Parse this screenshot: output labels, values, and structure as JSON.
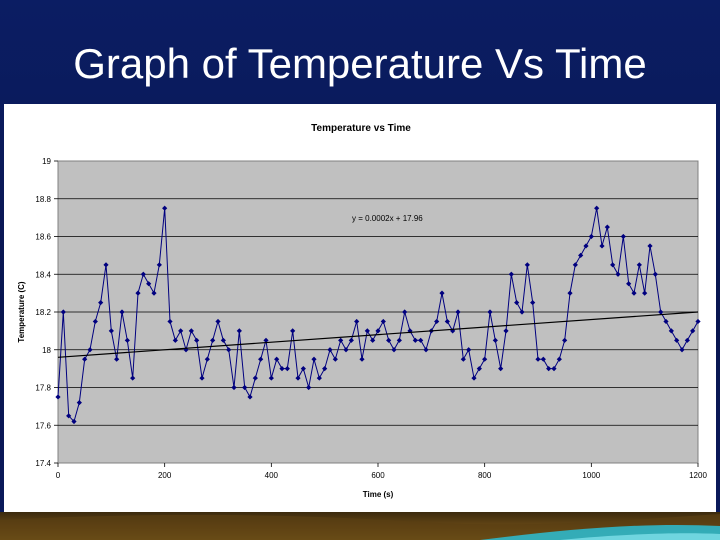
{
  "slide": {
    "title": "Graph of Temperature Vs Time"
  },
  "colors": {
    "background": "#0a1a5c",
    "plot_area": "#c0c0c0",
    "series": "#00007f",
    "trendline": "#000000"
  },
  "chart_data": {
    "type": "scatter",
    "title": "Temperature vs Time",
    "xlabel": "Time (s)",
    "ylabel": "Temperature (C)",
    "xlim": [
      0,
      1200
    ],
    "ylim": [
      17.4,
      19
    ],
    "x_ticks": [
      0,
      200,
      400,
      600,
      800,
      1000,
      1200
    ],
    "y_ticks": [
      17.4,
      17.6,
      17.8,
      18,
      18.2,
      18.4,
      18.6,
      18.8,
      19
    ],
    "y_tick_labels": [
      "17.4",
      "17.6",
      "17.8",
      "18",
      "18.2",
      "18.4",
      "18.6",
      "18.8",
      "19"
    ],
    "grid": "horizontal",
    "legend": "none",
    "marker": "diamond",
    "connected": true,
    "trendline": {
      "slope": 0.0002,
      "intercept": 17.96,
      "label": "y = 0.0002x + 17.96"
    },
    "series": [
      {
        "x": [
          0,
          10,
          20,
          30,
          40,
          50,
          60,
          70,
          80,
          90,
          100,
          110,
          120,
          130,
          140,
          150,
          160,
          170,
          180,
          190,
          200,
          210,
          220,
          230,
          240,
          250,
          260,
          270,
          280,
          290,
          300,
          310,
          320,
          330,
          340,
          350,
          360,
          370,
          380,
          390,
          400,
          410,
          420,
          430,
          440,
          450,
          460,
          470,
          480,
          490,
          500,
          510,
          520,
          530,
          540,
          550,
          560,
          570,
          580,
          590,
          600,
          610,
          620,
          630,
          640,
          650,
          660,
          670,
          680,
          690,
          700,
          710,
          720,
          730,
          740,
          750,
          760,
          770,
          780,
          790,
          800,
          810,
          820,
          830,
          840,
          850,
          860,
          870,
          880,
          890,
          900,
          910,
          920,
          930,
          940,
          950,
          960,
          970,
          980,
          990,
          1000,
          1010,
          1020,
          1030,
          1040,
          1050,
          1060,
          1070,
          1080,
          1090,
          1100,
          1110,
          1120,
          1130,
          1140,
          1150,
          1160,
          1170,
          1180,
          1190,
          1200
        ],
        "y": [
          17.75,
          18.2,
          17.65,
          17.62,
          17.72,
          17.95,
          18,
          18.15,
          18.25,
          18.45,
          18.1,
          17.95,
          18.2,
          18.05,
          17.85,
          18.3,
          18.4,
          18.35,
          18.3,
          18.45,
          18.75,
          18.15,
          18.05,
          18.1,
          18,
          18.1,
          18.05,
          17.85,
          17.95,
          18.05,
          18.15,
          18.05,
          18,
          17.8,
          18.1,
          17.8,
          17.75,
          17.85,
          17.95,
          18.05,
          17.85,
          17.95,
          17.9,
          17.9,
          18.1,
          17.85,
          17.9,
          17.8,
          17.95,
          17.85,
          17.9,
          18,
          17.95,
          18.05,
          18,
          18.05,
          18.15,
          17.95,
          18.1,
          18.05,
          18.1,
          18.15,
          18.05,
          18,
          18.05,
          18.2,
          18.1,
          18.05,
          18.05,
          18,
          18.1,
          18.15,
          18.3,
          18.15,
          18.1,
          18.2,
          17.95,
          18,
          17.85,
          17.9,
          17.95,
          18.2,
          18.05,
          17.9,
          18.1,
          18.4,
          18.25,
          18.2,
          18.45,
          18.25,
          17.95,
          17.95,
          17.9,
          17.9,
          17.95,
          18.05,
          18.3,
          18.45,
          18.5,
          18.55,
          18.6,
          18.75,
          18.55,
          18.65,
          18.45,
          18.4,
          18.6,
          18.35,
          18.3,
          18.45,
          18.3,
          18.55,
          18.4,
          18.2,
          18.15,
          18.1,
          18.05,
          18,
          18.05,
          18.1,
          18.15
        ]
      }
    ]
  }
}
